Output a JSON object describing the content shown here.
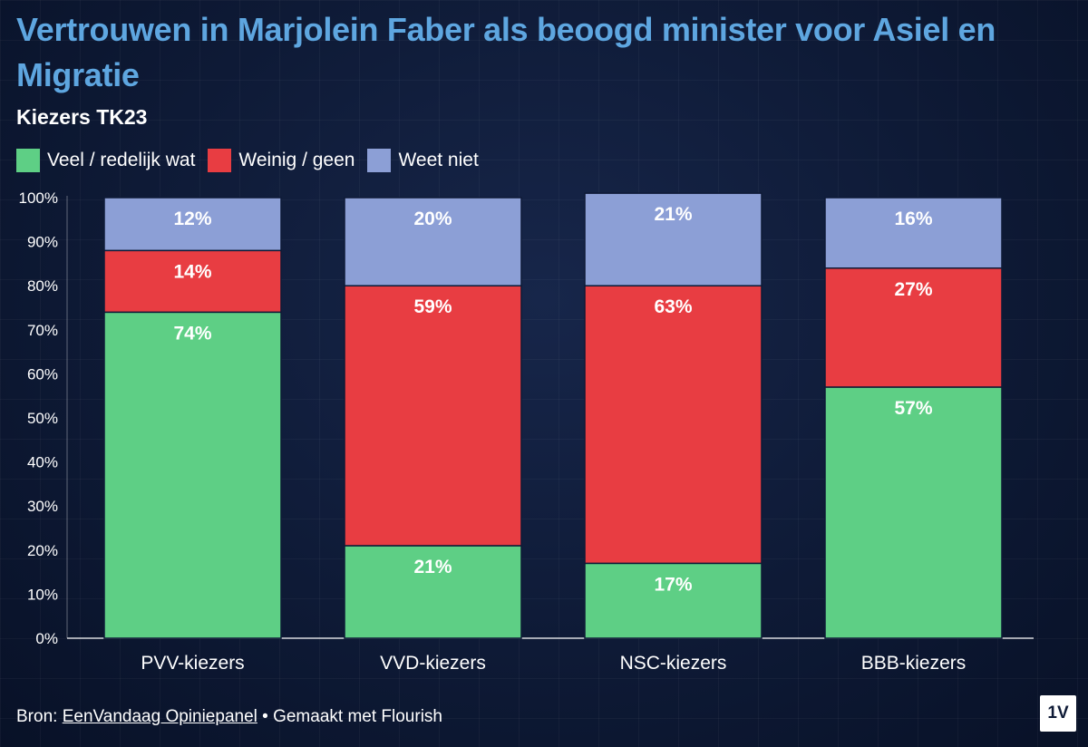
{
  "title": "Vertrouwen in Marjolein Faber als beoogd minister voor Asiel en Migratie",
  "subtitle": "Kiezers TK23",
  "colors": {
    "positive": "#5ecf85",
    "negative": "#e83d42",
    "unknown": "#8c9fd6"
  },
  "legend": [
    {
      "label": "Veel / redelijk wat",
      "color": "#5ecf85"
    },
    {
      "label": "Weinig / geen",
      "color": "#e83d42"
    },
    {
      "label": "Weet niet",
      "color": "#8c9fd6"
    }
  ],
  "footer": {
    "prefix": "Bron: ",
    "source_link": "EenVandaag Opiniepanel",
    "suffix": " • Gemaakt met Flourish"
  },
  "logo": "1V",
  "chart_data": {
    "type": "bar",
    "stacked": true,
    "categories": [
      "PVV-kiezers",
      "VVD-kiezers",
      "NSC-kiezers",
      "BBB-kiezers"
    ],
    "series": [
      {
        "name": "Veel / redelijk wat",
        "values": [
          74,
          21,
          17,
          57
        ],
        "color": "#5ecf85"
      },
      {
        "name": "Weinig / geen",
        "values": [
          14,
          59,
          63,
          27
        ],
        "color": "#e83d42"
      },
      {
        "name": "Weet niet",
        "values": [
          12,
          20,
          21,
          16
        ],
        "color": "#8c9fd6"
      }
    ],
    "ylim": [
      0,
      100
    ],
    "yticks": [
      "0%",
      "10%",
      "20%",
      "30%",
      "40%",
      "50%",
      "60%",
      "70%",
      "80%",
      "90%",
      "100%"
    ],
    "value_suffix": "%",
    "legend_position": "top-left",
    "grid": false
  }
}
